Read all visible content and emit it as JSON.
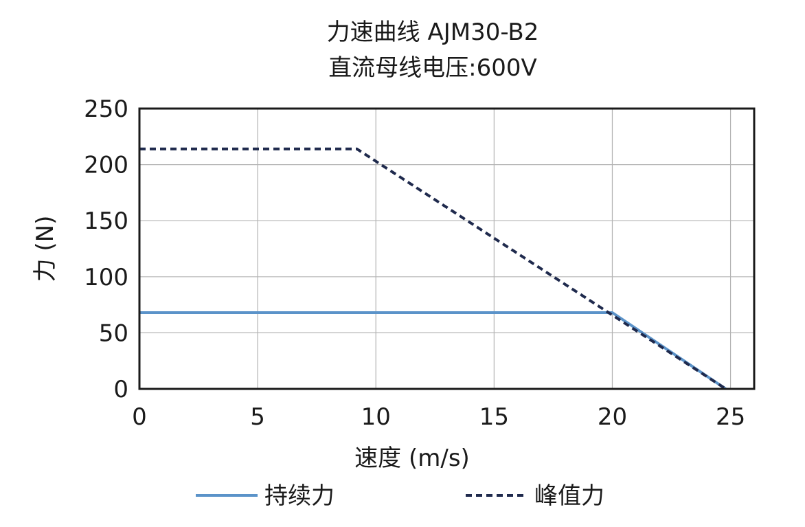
{
  "chart_data": {
    "type": "line",
    "title": [
      "力速曲线 AJM30-B2",
      "直流母线电压:600V"
    ],
    "xlabel": "速度 (m/s)",
    "ylabel": "力 (N)",
    "xlim": [
      0,
      26
    ],
    "ylim": [
      0,
      250
    ],
    "xticks": [
      0,
      5,
      10,
      15,
      20,
      25
    ],
    "yticks": [
      0,
      50,
      100,
      150,
      200,
      250
    ],
    "grid": true,
    "legend_position": "bottom",
    "series": [
      {
        "name": "持续力",
        "color": "#5b93c9",
        "style": "solid",
        "x": [
          0,
          20,
          24.8
        ],
        "y": [
          68,
          68,
          0
        ]
      },
      {
        "name": "峰值力",
        "color": "#1f2a4d",
        "style": "dashed",
        "x": [
          0,
          9.2,
          24.8
        ],
        "y": [
          214,
          214,
          0
        ]
      }
    ]
  }
}
